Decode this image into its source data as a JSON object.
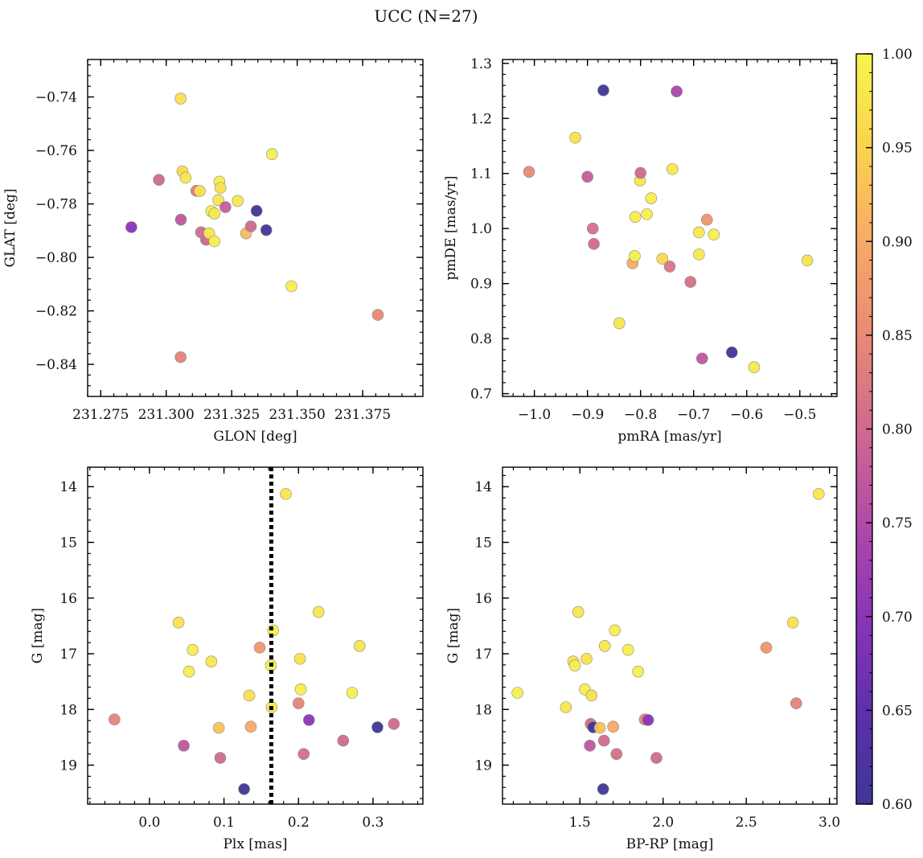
{
  "figure": {
    "title": "UCC (N=27)"
  },
  "colorbar": {
    "min": 0.6,
    "max": 1.0,
    "ticks": [
      0.6,
      0.65,
      0.7,
      0.75,
      0.8,
      0.85,
      0.9,
      0.95,
      1.0
    ],
    "tick_labels": [
      "0.60",
      "0.65",
      "0.70",
      "0.75",
      "0.80",
      "0.85",
      "0.90",
      "0.95",
      "1.00"
    ],
    "colormap": "plasma",
    "stops": [
      "#3d3797",
      "#5f2fac",
      "#8a35b8",
      "#b14aa8",
      "#d06a8c",
      "#e98975",
      "#f7aa66",
      "#fbd24f",
      "#f6f54c"
    ]
  },
  "chart_data": [
    {
      "id": "glon-glat",
      "type": "scatter",
      "xlabel": "GLON [deg]",
      "ylabel": "GLAT [deg]",
      "xlim": [
        231.27,
        231.398
      ],
      "ylim": [
        -0.852,
        -0.726
      ],
      "y_inverted": false,
      "xticks": [
        231.275,
        231.3,
        231.325,
        231.35,
        231.375
      ],
      "xtick_labels": [
        "231.275",
        "231.300",
        "231.325",
        "231.350",
        "231.375"
      ],
      "yticks": [
        -0.74,
        -0.76,
        -0.78,
        -0.8,
        -0.82,
        -0.84
      ],
      "ytick_labels": [
        "−0.74",
        "−0.76",
        "−0.78",
        "−0.80",
        "−0.82",
        "−0.84"
      ],
      "points": [
        {
          "x": 231.2867,
          "y": -0.7887,
          "c": 0.7
        },
        {
          "x": 231.2972,
          "y": -0.771,
          "c": 0.8
        },
        {
          "x": 231.3055,
          "y": -0.7406,
          "c": 0.97
        },
        {
          "x": 231.3062,
          "y": -0.7678,
          "c": 0.96
        },
        {
          "x": 231.3074,
          "y": -0.7702,
          "c": 0.98
        },
        {
          "x": 231.3056,
          "y": -0.7859,
          "c": 0.77
        },
        {
          "x": 231.3055,
          "y": -0.8373,
          "c": 0.84
        },
        {
          "x": 231.3115,
          "y": -0.7751,
          "c": 0.83
        },
        {
          "x": 231.3128,
          "y": -0.7752,
          "c": 0.97
        },
        {
          "x": 231.3133,
          "y": -0.7906,
          "c": 0.8
        },
        {
          "x": 231.3152,
          "y": -0.7934,
          "c": 0.79
        },
        {
          "x": 231.3164,
          "y": -0.791,
          "c": 0.98
        },
        {
          "x": 231.3172,
          "y": -0.7827,
          "c": 0.99
        },
        {
          "x": 231.3184,
          "y": -0.7836,
          "c": 0.98
        },
        {
          "x": 231.3184,
          "y": -0.794,
          "c": 0.99
        },
        {
          "x": 231.3199,
          "y": -0.7786,
          "c": 0.98
        },
        {
          "x": 231.3203,
          "y": -0.7717,
          "c": 0.99
        },
        {
          "x": 231.3207,
          "y": -0.774,
          "c": 0.97
        },
        {
          "x": 231.3226,
          "y": -0.7812,
          "c": 0.78
        },
        {
          "x": 231.3273,
          "y": -0.7789,
          "c": 0.98
        },
        {
          "x": 231.3305,
          "y": -0.791,
          "c": 0.92
        },
        {
          "x": 231.3323,
          "y": -0.7884,
          "c": 0.8
        },
        {
          "x": 231.3345,
          "y": -0.7826,
          "c": 0.6
        },
        {
          "x": 231.3382,
          "y": -0.7898,
          "c": 0.61
        },
        {
          "x": 231.3404,
          "y": -0.7614,
          "c": 0.99
        },
        {
          "x": 231.3478,
          "y": -0.8108,
          "c": 0.99
        },
        {
          "x": 231.3808,
          "y": -0.8215,
          "c": 0.85
        }
      ]
    },
    {
      "id": "pmra-pmde",
      "type": "scatter",
      "xlabel": "pmRA [mas/yr]",
      "ylabel": "pmDE [mas/yr]",
      "xlim": [
        -1.06,
        -0.43
      ],
      "ylim": [
        0.695,
        1.307
      ],
      "y_inverted": false,
      "xticks": [
        -1.0,
        -0.9,
        -0.8,
        -0.7,
        -0.6,
        -0.5
      ],
      "xtick_labels": [
        "−1.0",
        "−0.9",
        "−0.8",
        "−0.7",
        "−0.6",
        "−0.5"
      ],
      "yticks": [
        0.7,
        0.8,
        0.9,
        1.0,
        1.1,
        1.2,
        1.3
      ],
      "ytick_labels": [
        "0.7",
        "0.8",
        "0.9",
        "1.0",
        "1.1",
        "1.2",
        "1.3"
      ],
      "points": [
        {
          "x": -1.01,
          "y": 1.103,
          "c": 0.85
        },
        {
          "x": -0.923,
          "y": 1.165,
          "c": 0.97
        },
        {
          "x": -0.9,
          "y": 1.094,
          "c": 0.78
        },
        {
          "x": -0.89,
          "y": 1.0,
          "c": 0.81
        },
        {
          "x": -0.888,
          "y": 0.972,
          "c": 0.8
        },
        {
          "x": -0.87,
          "y": 1.251,
          "c": 0.6
        },
        {
          "x": -0.84,
          "y": 0.828,
          "c": 0.98
        },
        {
          "x": -0.815,
          "y": 0.937,
          "c": 0.9
        },
        {
          "x": -0.811,
          "y": 0.95,
          "c": 0.99
        },
        {
          "x": -0.81,
          "y": 1.021,
          "c": 0.99
        },
        {
          "x": -0.801,
          "y": 1.087,
          "c": 0.98
        },
        {
          "x": -0.8,
          "y": 1.101,
          "c": 0.8
        },
        {
          "x": -0.788,
          "y": 1.026,
          "c": 0.99
        },
        {
          "x": -0.78,
          "y": 1.055,
          "c": 0.99
        },
        {
          "x": -0.759,
          "y": 0.945,
          "c": 0.96
        },
        {
          "x": -0.745,
          "y": 0.931,
          "c": 0.82
        },
        {
          "x": -0.74,
          "y": 1.108,
          "c": 0.98
        },
        {
          "x": -0.732,
          "y": 1.249,
          "c": 0.74
        },
        {
          "x": -0.706,
          "y": 0.903,
          "c": 0.81
        },
        {
          "x": -0.69,
          "y": 0.993,
          "c": 0.98
        },
        {
          "x": -0.69,
          "y": 0.953,
          "c": 0.98
        },
        {
          "x": -0.684,
          "y": 0.764,
          "c": 0.77
        },
        {
          "x": -0.675,
          "y": 1.016,
          "c": 0.87
        },
        {
          "x": -0.662,
          "y": 0.989,
          "c": 0.99
        },
        {
          "x": -0.628,
          "y": 0.775,
          "c": 0.6
        },
        {
          "x": -0.586,
          "y": 0.748,
          "c": 0.98
        },
        {
          "x": -0.486,
          "y": 0.942,
          "c": 0.97
        }
      ]
    },
    {
      "id": "plx-g",
      "type": "scatter",
      "xlabel": "Plx [mas]",
      "ylabel": "G [mag]",
      "xlim": [
        -0.083,
        0.367
      ],
      "ylim": [
        13.65,
        19.7
      ],
      "y_inverted": true,
      "xticks": [
        0.0,
        0.1,
        0.2,
        0.3
      ],
      "xtick_labels": [
        "0.0",
        "0.1",
        "0.2",
        "0.3"
      ],
      "yticks": [
        14,
        15,
        16,
        17,
        18,
        19
      ],
      "ytick_labels": [
        "14",
        "15",
        "16",
        "17",
        "18",
        "19"
      ],
      "vline": 0.1635,
      "points": [
        {
          "x": -0.047,
          "y": 18.18,
          "c": 0.84
        },
        {
          "x": 0.039,
          "y": 16.44,
          "c": 0.97
        },
        {
          "x": 0.046,
          "y": 18.65,
          "c": 0.77
        },
        {
          "x": 0.053,
          "y": 17.32,
          "c": 0.99
        },
        {
          "x": 0.058,
          "y": 16.93,
          "c": 0.99
        },
        {
          "x": 0.083,
          "y": 17.14,
          "c": 0.98
        },
        {
          "x": 0.093,
          "y": 18.33,
          "c": 0.93
        },
        {
          "x": 0.095,
          "y": 18.87,
          "c": 0.8
        },
        {
          "x": 0.127,
          "y": 19.43,
          "c": 0.6
        },
        {
          "x": 0.134,
          "y": 17.75,
          "c": 0.97
        },
        {
          "x": 0.136,
          "y": 18.31,
          "c": 0.9
        },
        {
          "x": 0.148,
          "y": 16.89,
          "c": 0.87
        },
        {
          "x": 0.163,
          "y": 17.21,
          "c": 0.99
        },
        {
          "x": 0.164,
          "y": 17.96,
          "c": 0.98
        },
        {
          "x": 0.166,
          "y": 16.58,
          "c": 0.99
        },
        {
          "x": 0.183,
          "y": 14.13,
          "c": 0.98
        },
        {
          "x": 0.2,
          "y": 17.89,
          "c": 0.84
        },
        {
          "x": 0.202,
          "y": 17.09,
          "c": 0.97
        },
        {
          "x": 0.203,
          "y": 17.64,
          "c": 0.99
        },
        {
          "x": 0.207,
          "y": 18.8,
          "c": 0.81
        },
        {
          "x": 0.214,
          "y": 18.19,
          "c": 0.7
        },
        {
          "x": 0.227,
          "y": 16.25,
          "c": 0.98
        },
        {
          "x": 0.26,
          "y": 18.56,
          "c": 0.8
        },
        {
          "x": 0.272,
          "y": 17.7,
          "c": 0.99
        },
        {
          "x": 0.282,
          "y": 16.86,
          "c": 0.98
        },
        {
          "x": 0.306,
          "y": 18.32,
          "c": 0.6
        },
        {
          "x": 0.328,
          "y": 18.26,
          "c": 0.8
        }
      ]
    },
    {
      "id": "bprp-g",
      "type": "scatter",
      "xlabel": "BP-RP [mag]",
      "ylabel": "G [mag]",
      "xlim": [
        1.035,
        3.045
      ],
      "ylim": [
        13.65,
        19.7
      ],
      "y_inverted": true,
      "xticks": [
        1.5,
        2.0,
        2.5,
        3.0
      ],
      "xtick_labels": [
        "1.5",
        "2.0",
        "2.5",
        "3.0"
      ],
      "yticks": [
        14,
        15,
        16,
        17,
        18,
        19
      ],
      "ytick_labels": [
        "14",
        "15",
        "16",
        "17",
        "18",
        "19"
      ],
      "points": [
        {
          "x": 1.125,
          "y": 17.7,
          "c": 0.99
        },
        {
          "x": 1.416,
          "y": 17.96,
          "c": 0.98
        },
        {
          "x": 1.46,
          "y": 17.14,
          "c": 0.98
        },
        {
          "x": 1.47,
          "y": 17.21,
          "c": 0.99
        },
        {
          "x": 1.49,
          "y": 16.25,
          "c": 0.98
        },
        {
          "x": 1.53,
          "y": 17.64,
          "c": 0.99
        },
        {
          "x": 1.54,
          "y": 17.09,
          "c": 0.97
        },
        {
          "x": 1.56,
          "y": 18.65,
          "c": 0.77
        },
        {
          "x": 1.565,
          "y": 18.26,
          "c": 0.8
        },
        {
          "x": 1.57,
          "y": 17.75,
          "c": 0.97
        },
        {
          "x": 1.58,
          "y": 18.32,
          "c": 0.6
        },
        {
          "x": 1.62,
          "y": 18.33,
          "c": 0.93
        },
        {
          "x": 1.64,
          "y": 19.43,
          "c": 0.6
        },
        {
          "x": 1.645,
          "y": 18.56,
          "c": 0.8
        },
        {
          "x": 1.65,
          "y": 16.86,
          "c": 0.98
        },
        {
          "x": 1.7,
          "y": 18.31,
          "c": 0.9
        },
        {
          "x": 1.71,
          "y": 16.58,
          "c": 0.99
        },
        {
          "x": 1.72,
          "y": 18.8,
          "c": 0.81
        },
        {
          "x": 1.79,
          "y": 16.93,
          "c": 0.99
        },
        {
          "x": 1.85,
          "y": 17.32,
          "c": 0.99
        },
        {
          "x": 1.89,
          "y": 18.18,
          "c": 0.84
        },
        {
          "x": 1.91,
          "y": 18.19,
          "c": 0.7
        },
        {
          "x": 1.96,
          "y": 18.87,
          "c": 0.8
        },
        {
          "x": 2.62,
          "y": 16.89,
          "c": 0.87
        },
        {
          "x": 2.78,
          "y": 16.44,
          "c": 0.97
        },
        {
          "x": 2.8,
          "y": 17.89,
          "c": 0.84
        },
        {
          "x": 2.935,
          "y": 14.13,
          "c": 0.98
        }
      ]
    }
  ]
}
